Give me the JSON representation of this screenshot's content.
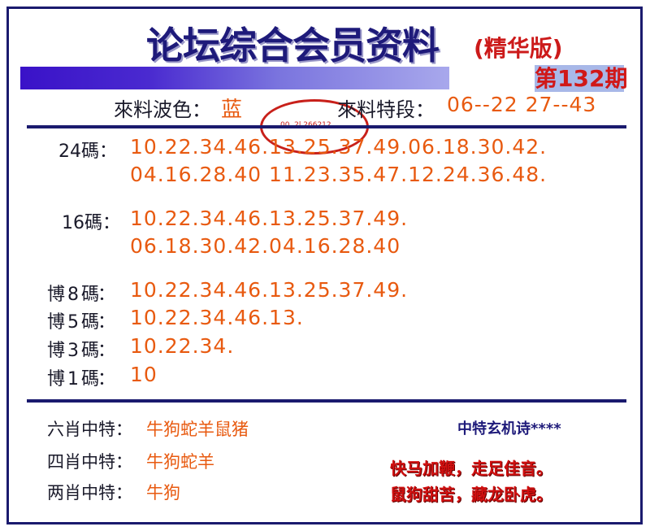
{
  "header": {
    "title": "论坛综合会员资料",
    "edition": "(精华版)",
    "issue": "第132期"
  },
  "info": {
    "wave_label": "來料波色：",
    "wave_value": "蓝",
    "special_label": "來料特段：",
    "special_value": "06--22  27--43",
    "stamp_text": "00..2l 266212"
  },
  "codes": [
    {
      "label": "24碼：",
      "lines": [
        "10.22.34.46.13.25.37.49.06.18.30.42.",
        "04.16.28.40 11.23.35.47.12.24.36.48."
      ]
    },
    {
      "label": "16碼：",
      "lines": [
        "10.22.34.46.13.25.37.49.",
        "06.18.30.42.04.16.28.40"
      ]
    },
    {
      "label": "博 8 碼：",
      "lines": [
        "10.22.34.46.13.25.37.49."
      ]
    },
    {
      "label": "博 5 碼：",
      "lines": [
        "10.22.34.46.13."
      ]
    },
    {
      "label": "博 3 碼：",
      "lines": [
        "10.22.34."
      ]
    },
    {
      "label": "博 1 碼：",
      "lines": [
        "10"
      ]
    }
  ],
  "zodiac": [
    {
      "label": "六肖中特：",
      "value": "牛狗蛇羊鼠猪"
    },
    {
      "label": "四肖中特：",
      "value": "牛狗蛇羊"
    },
    {
      "label": "两肖中特：",
      "value": "牛狗"
    }
  ],
  "poem": {
    "title": "中特玄机诗****",
    "lines": [
      "快马加鞭，走足佳音。",
      "鼠狗甜苦，藏龙卧虎。"
    ]
  },
  "colors": {
    "navy": "#1a1a6e",
    "orange": "#e85a10",
    "red": "#d01010"
  }
}
